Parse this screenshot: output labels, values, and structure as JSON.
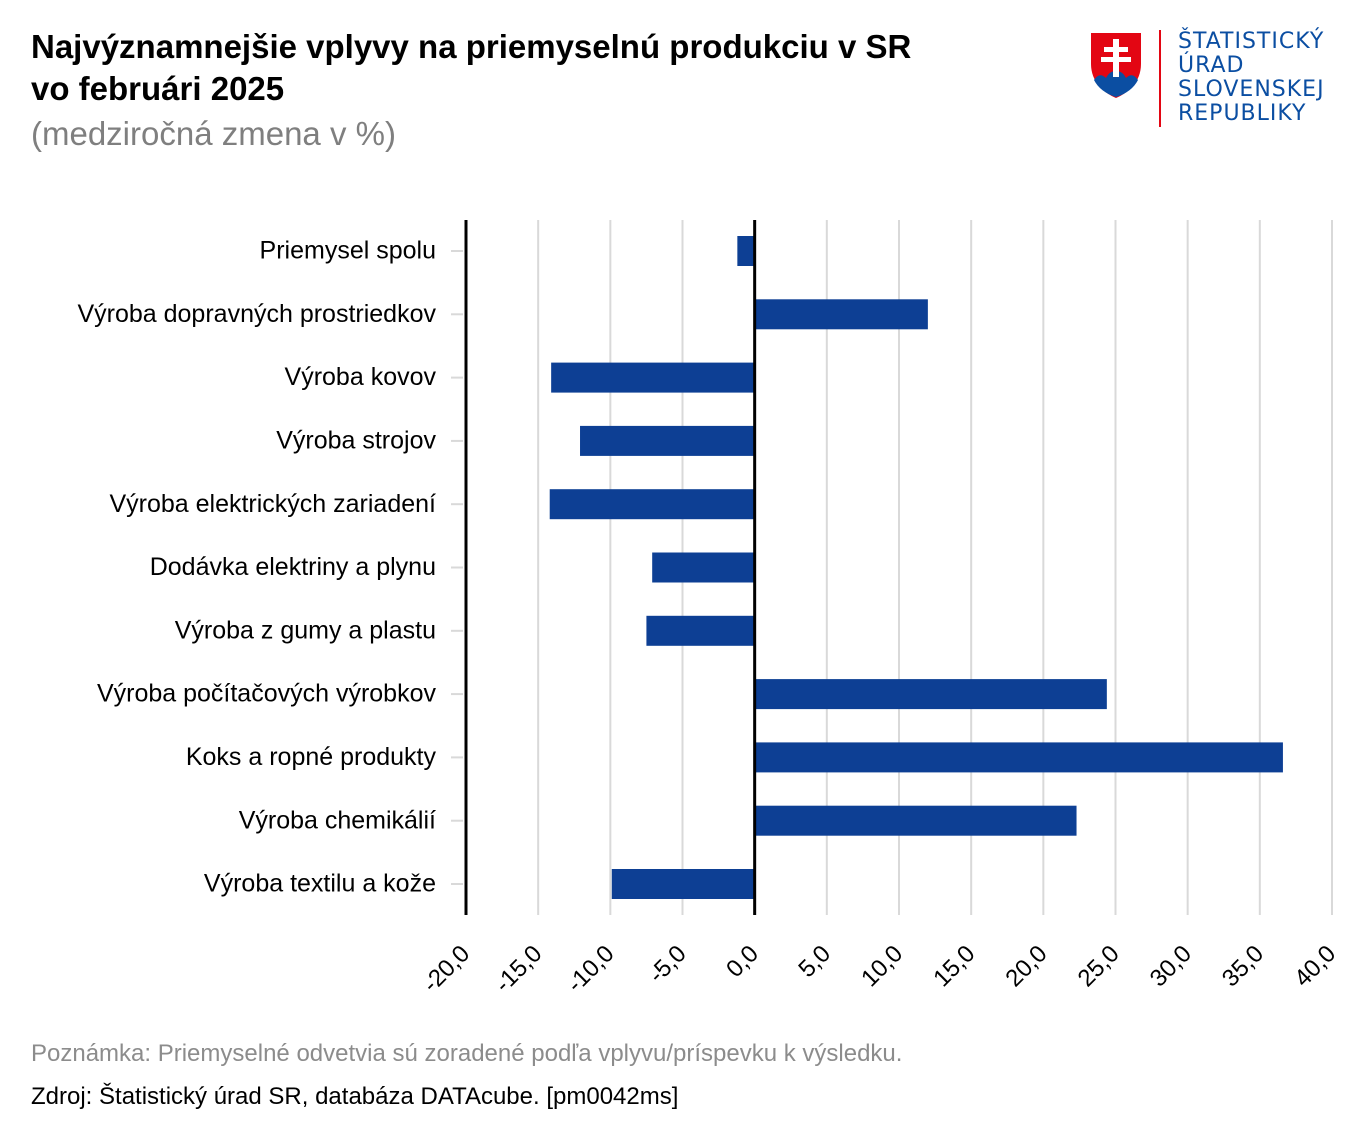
{
  "title_line1": "Najvýznamnejšie vplyvy na priemyselnú produkciu v SR",
  "title_line2": "vo februári 2025",
  "subtitle": "(medziročná zmena v %)",
  "logo": {
    "lines": [
      "ŠTATISTICKÝ",
      "ÚRAD",
      "SLOVENSKEJ",
      "REPUBLIKY"
    ],
    "text_color": "#0b4ea2",
    "divider_color": "#e30613",
    "icon": "slovak-coat-of-arms-icon"
  },
  "note": "Poznámka: Priemyselné odvetvia sú zoradené podľa vplyvu/príspevku k výsledku.",
  "source": "Zdroj: Štatistický úrad SR, databáza DATAcube. [pm0042ms]",
  "chart_data": {
    "type": "bar",
    "orientation": "horizontal",
    "categories": [
      "Priemysel spolu",
      "Výroba dopravných prostriedkov",
      "Výroba kovov",
      "Výroba strojov",
      "Výroba elektrických zariadení",
      "Dodávka elektriny a plynu",
      "Výroba z gumy a plastu",
      "Výroba počítačových výrobkov",
      "Koks a ropné produkty",
      "Výroba chemikálií",
      "Výroba textilu a kože"
    ],
    "values": [
      -1.2,
      12.0,
      -14.1,
      -12.1,
      -14.2,
      -7.1,
      -7.5,
      24.4,
      36.6,
      22.3,
      -9.9
    ],
    "xlim": [
      -20,
      40
    ],
    "ticks": [
      -20,
      -15,
      -10,
      -5,
      0,
      5,
      10,
      15,
      20,
      25,
      30,
      35,
      40
    ],
    "tick_labels": [
      "-20,0",
      "-15,0",
      "-10,0",
      "-5,0",
      "0,0",
      "5,0",
      "10,0",
      "15,0",
      "20,0",
      "25,0",
      "30,0",
      "35,0",
      "40,0"
    ],
    "bar_color": "#0d3f94",
    "grid": true,
    "grid_color": "#d9d9d9",
    "legend": "none"
  }
}
